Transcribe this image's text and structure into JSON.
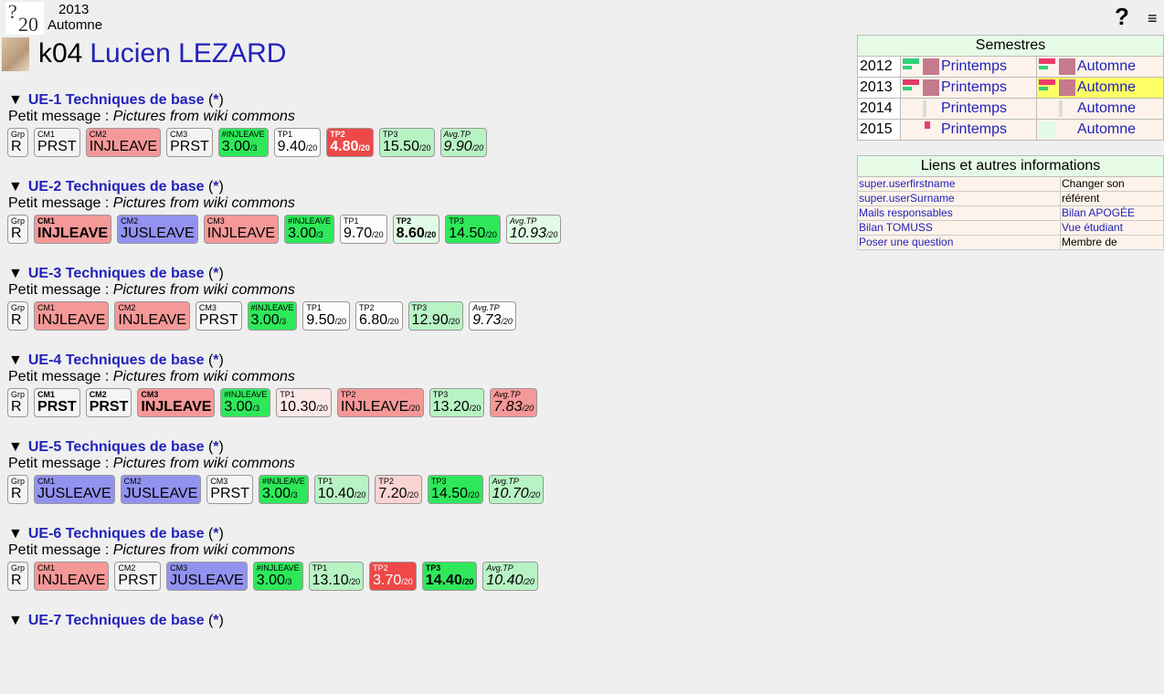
{
  "header": {
    "logo_top": "?",
    "logo_bottom": "20",
    "year": "2013",
    "season": "Automne",
    "help": "?",
    "menu": "≡"
  },
  "student": {
    "code": "k04",
    "name": "Lucien LEZARD"
  },
  "ues": [
    {
      "title": "UE-1 Techniques de base",
      "star": "*",
      "msg_label": "Petit message :",
      "msg": "Pictures from wiki commons",
      "cells": [
        {
          "lab": "Grp",
          "val": "R",
          "den": "",
          "color": "grey",
          "style": ""
        },
        {
          "lab": "CM1",
          "val": "PRST",
          "den": "",
          "color": "grey",
          "style": ""
        },
        {
          "lab": "CM2",
          "val": "INJLEAVE",
          "den": "",
          "color": "red",
          "style": ""
        },
        {
          "lab": "CM3",
          "val": "PRST",
          "den": "",
          "color": "grey",
          "style": ""
        },
        {
          "lab": "#INJLEAVE",
          "val": "3.00",
          "den": "/3",
          "color": "green",
          "style": ""
        },
        {
          "lab": "TP1",
          "val": "9.40",
          "den": "/20",
          "color": "white",
          "style": ""
        },
        {
          "lab": "TP2",
          "val": "4.80",
          "den": "/20",
          "color": "dred",
          "style": "bold"
        },
        {
          "lab": "TP3",
          "val": "15.50",
          "den": "/20",
          "color": "lgreen",
          "style": ""
        },
        {
          "lab": "Avg.TP",
          "val": "9.90",
          "den": "/20",
          "color": "lgreen",
          "style": "it"
        }
      ]
    },
    {
      "title": "UE-2 Techniques de base",
      "star": "*",
      "msg_label": "Petit message :",
      "msg": "Pictures from wiki commons",
      "cells": [
        {
          "lab": "Grp",
          "val": "R",
          "den": "",
          "color": "grey",
          "style": ""
        },
        {
          "lab": "CM1",
          "val": "INJLEAVE",
          "den": "",
          "color": "red",
          "style": "bold"
        },
        {
          "lab": "CM2",
          "val": "JUSLEAVE",
          "den": "",
          "color": "blue",
          "style": ""
        },
        {
          "lab": "CM3",
          "val": "INJLEAVE",
          "den": "",
          "color": "red",
          "style": ""
        },
        {
          "lab": "#INJLEAVE",
          "val": "3.00",
          "den": "/3",
          "color": "green",
          "style": ""
        },
        {
          "lab": "TP1",
          "val": "9.70",
          "den": "/20",
          "color": "white",
          "style": ""
        },
        {
          "lab": "TP2",
          "val": "8.60",
          "den": "/20",
          "color": "vlgreen",
          "style": "bold"
        },
        {
          "lab": "TP3",
          "val": "14.50",
          "den": "/20",
          "color": "green",
          "style": ""
        },
        {
          "lab": "Avg.TP",
          "val": "10.93",
          "den": "/20",
          "color": "vlgreen",
          "style": "it"
        }
      ]
    },
    {
      "title": "UE-3 Techniques de base",
      "star": "*",
      "msg_label": "Petit message :",
      "msg": "Pictures from wiki commons",
      "cells": [
        {
          "lab": "Grp",
          "val": "R",
          "den": "",
          "color": "grey",
          "style": ""
        },
        {
          "lab": "CM1",
          "val": "INJLEAVE",
          "den": "",
          "color": "red",
          "style": ""
        },
        {
          "lab": "CM2",
          "val": "INJLEAVE",
          "den": "",
          "color": "red",
          "style": ""
        },
        {
          "lab": "CM3",
          "val": "PRST",
          "den": "",
          "color": "grey",
          "style": ""
        },
        {
          "lab": "#INJLEAVE",
          "val": "3.00",
          "den": "/3",
          "color": "green",
          "style": ""
        },
        {
          "lab": "TP1",
          "val": "9.50",
          "den": "/20",
          "color": "white",
          "style": ""
        },
        {
          "lab": "TP2",
          "val": "6.80",
          "den": "/20",
          "color": "white",
          "style": ""
        },
        {
          "lab": "TP3",
          "val": "12.90",
          "den": "/20",
          "color": "lgreen",
          "style": ""
        },
        {
          "lab": "Avg.TP",
          "val": "9.73",
          "den": "/20",
          "color": "white",
          "style": "it"
        }
      ]
    },
    {
      "title": "UE-4 Techniques de base",
      "star": "*",
      "msg_label": "Petit message :",
      "msg": "Pictures from wiki commons",
      "cells": [
        {
          "lab": "Grp",
          "val": "R",
          "den": "",
          "color": "grey",
          "style": ""
        },
        {
          "lab": "CM1",
          "val": "PRST",
          "den": "",
          "color": "grey",
          "style": "bold"
        },
        {
          "lab": "CM2",
          "val": "PRST",
          "den": "",
          "color": "grey",
          "style": "bold"
        },
        {
          "lab": "CM3",
          "val": "INJLEAVE",
          "den": "",
          "color": "red",
          "style": "bold"
        },
        {
          "lab": "#INJLEAVE",
          "val": "3.00",
          "den": "/3",
          "color": "green",
          "style": ""
        },
        {
          "lab": "TP1",
          "val": "10.30",
          "den": "/20",
          "color": "lpink",
          "style": ""
        },
        {
          "lab": "TP2",
          "val": "INJLEAVE",
          "den": "/20",
          "color": "red",
          "style": ""
        },
        {
          "lab": "TP3",
          "val": "13.20",
          "den": "/20",
          "color": "lgreen",
          "style": ""
        },
        {
          "lab": "Avg.TP",
          "val": "7.83",
          "den": "/20",
          "color": "red",
          "style": "it"
        }
      ]
    },
    {
      "title": "UE-5 Techniques de base",
      "star": "*",
      "msg_label": "Petit message :",
      "msg": "Pictures from wiki commons",
      "cells": [
        {
          "lab": "Grp",
          "val": "R",
          "den": "",
          "color": "grey",
          "style": ""
        },
        {
          "lab": "CM1",
          "val": "JUSLEAVE",
          "den": "",
          "color": "blue",
          "style": ""
        },
        {
          "lab": "CM2",
          "val": "JUSLEAVE",
          "den": "",
          "color": "blue",
          "style": ""
        },
        {
          "lab": "CM3",
          "val": "PRST",
          "den": "",
          "color": "grey",
          "style": ""
        },
        {
          "lab": "#INJLEAVE",
          "val": "3.00",
          "den": "/3",
          "color": "green",
          "style": ""
        },
        {
          "lab": "TP1",
          "val": "10.40",
          "den": "/20",
          "color": "lgreen",
          "style": ""
        },
        {
          "lab": "TP2",
          "val": "7.20",
          "den": "/20",
          "color": "pink",
          "style": ""
        },
        {
          "lab": "TP3",
          "val": "14.50",
          "den": "/20",
          "color": "green",
          "style": ""
        },
        {
          "lab": "Avg.TP",
          "val": "10.70",
          "den": "/20",
          "color": "lgreen",
          "style": "it"
        }
      ]
    },
    {
      "title": "UE-6 Techniques de base",
      "star": "*",
      "msg_label": "Petit message :",
      "msg": "Pictures from wiki commons",
      "cells": [
        {
          "lab": "Grp",
          "val": "R",
          "den": "",
          "color": "grey",
          "style": ""
        },
        {
          "lab": "CM1",
          "val": "INJLEAVE",
          "den": "",
          "color": "red",
          "style": ""
        },
        {
          "lab": "CM2",
          "val": "PRST",
          "den": "",
          "color": "grey",
          "style": ""
        },
        {
          "lab": "CM3",
          "val": "JUSLEAVE",
          "den": "",
          "color": "blue",
          "style": ""
        },
        {
          "lab": "#INJLEAVE",
          "val": "3.00",
          "den": "/3",
          "color": "green",
          "style": ""
        },
        {
          "lab": "TP1",
          "val": "13.10",
          "den": "/20",
          "color": "lgreen",
          "style": ""
        },
        {
          "lab": "TP2",
          "val": "3.70",
          "den": "/20",
          "color": "dred",
          "style": ""
        },
        {
          "lab": "TP3",
          "val": "14.40",
          "den": "/20",
          "color": "green",
          "style": "bold"
        },
        {
          "lab": "Avg.TP",
          "val": "10.40",
          "den": "/20",
          "color": "lgreen",
          "style": "it"
        }
      ]
    },
    {
      "title": "UE-7 Techniques de base",
      "star": "*",
      "msg_label": "",
      "msg": "",
      "cells": []
    }
  ],
  "semesters": {
    "title": "Semestres",
    "rows": [
      {
        "year": "2012",
        "spring": "Printemps",
        "autumn": "Automne",
        "autumn_current": false
      },
      {
        "year": "2013",
        "spring": "Printemps",
        "autumn": "Automne",
        "autumn_current": true
      },
      {
        "year": "2014",
        "spring": "Printemps",
        "autumn": "Automne",
        "autumn_current": false
      },
      {
        "year": "2015",
        "spring": "Printemps",
        "autumn": "Automne",
        "autumn_current": false
      }
    ]
  },
  "links": {
    "title": "Liens et autres informations",
    "rows": [
      {
        "left": "super.userfirstname",
        "right": "Changer son",
        "left_link": true,
        "right_link": false
      },
      {
        "left": "super.userSurname",
        "right": "référent",
        "left_link": true,
        "right_link": false
      },
      {
        "left": "Mails responsables",
        "right": "Bilan APOGÉE",
        "left_link": true,
        "right_link": true
      },
      {
        "left": "Bilan TOMUSS",
        "right": "Vue étudiant",
        "left_link": true,
        "right_link": true
      },
      {
        "left": "Poser une question",
        "right": "Membre de",
        "left_link": true,
        "right_link": false
      }
    ]
  },
  "colors": {
    "grey": "#f4f4f4",
    "white": "#fdfdfd",
    "red": "#f59898",
    "dred": "#ee4848",
    "pink": "#fbd3d3",
    "lpink": "#fde8e8",
    "blue": "#9292f0",
    "green": "#2ee85a",
    "lgreen": "#b8f3c4",
    "vlgreen": "#e2fbe6",
    "link": "#2222bb",
    "current_semester": "#ffff66"
  }
}
